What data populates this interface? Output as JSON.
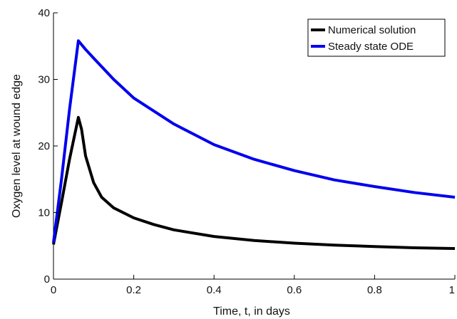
{
  "chart_data": {
    "type": "line",
    "title": "",
    "xlabel": "Time, t, in days",
    "ylabel": "Oxygen level at wound edge",
    "xlim": [
      0,
      1
    ],
    "ylim": [
      0,
      40
    ],
    "xticks": [
      0,
      0.2,
      0.4,
      0.6,
      0.8,
      1
    ],
    "xtick_labels": [
      "0",
      "0.2",
      "0.4",
      "0.6",
      "0.8",
      "1"
    ],
    "yticks": [
      0,
      10,
      20,
      30,
      40
    ],
    "ytick_labels": [
      "0",
      "10",
      "20",
      "30",
      "40"
    ],
    "grid": false,
    "legend_position": "top-right",
    "series": [
      {
        "name": "Numerical solution",
        "color": "#000000",
        "x": [
          0,
          0.02,
          0.04,
          0.062,
          0.07,
          0.08,
          0.1,
          0.12,
          0.15,
          0.2,
          0.25,
          0.3,
          0.4,
          0.5,
          0.6,
          0.7,
          0.8,
          0.9,
          1.0
        ],
        "y": [
          5.2,
          11.5,
          18,
          24.3,
          22.5,
          18.5,
          14.5,
          12.3,
          10.7,
          9.2,
          8.2,
          7.4,
          6.4,
          5.8,
          5.4,
          5.1,
          4.9,
          4.7,
          4.6
        ]
      },
      {
        "name": "Steady state ODE",
        "color": "#0000ee",
        "x": [
          0,
          0.02,
          0.04,
          0.062,
          0.08,
          0.1,
          0.15,
          0.2,
          0.3,
          0.4,
          0.5,
          0.6,
          0.7,
          0.8,
          0.9,
          1.0
        ],
        "y": [
          5.5,
          15,
          25.5,
          35.8,
          34.5,
          33.2,
          30.0,
          27.2,
          23.3,
          20.2,
          18.0,
          16.3,
          14.9,
          13.9,
          13.0,
          12.3
        ]
      }
    ]
  }
}
